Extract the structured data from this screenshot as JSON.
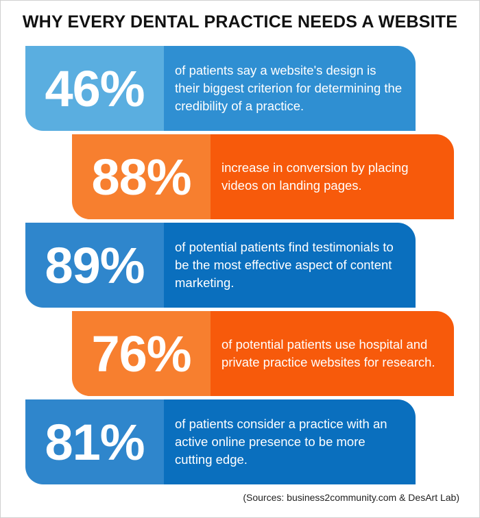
{
  "title": "WHY EVERY DENTAL PRACTICE NEEDS A WEBSITE",
  "stats": [
    {
      "value": "46%",
      "text": "of patients say a website's design is their biggest criterion for determining the credibility of a practice.",
      "color": "#2f8fd2"
    },
    {
      "value": "88%",
      "text": "increase in conversion by placing videos on landing pages.",
      "color": "#f75a0b"
    },
    {
      "value": "89%",
      "text": "of potential patients find testimonials to be the most effective aspect of content marketing.",
      "color": "#0a6fbe"
    },
    {
      "value": "76%",
      "text": "of potential patients use hospital and private practice websites for research.",
      "color": "#f75a0b"
    },
    {
      "value": "81%",
      "text": "of patients consider a practice with an active online presence to be more cutting edge.",
      "color": "#0a6fbe"
    }
  ],
  "sources": "(Sources: business2community.com & DesArt Lab)"
}
